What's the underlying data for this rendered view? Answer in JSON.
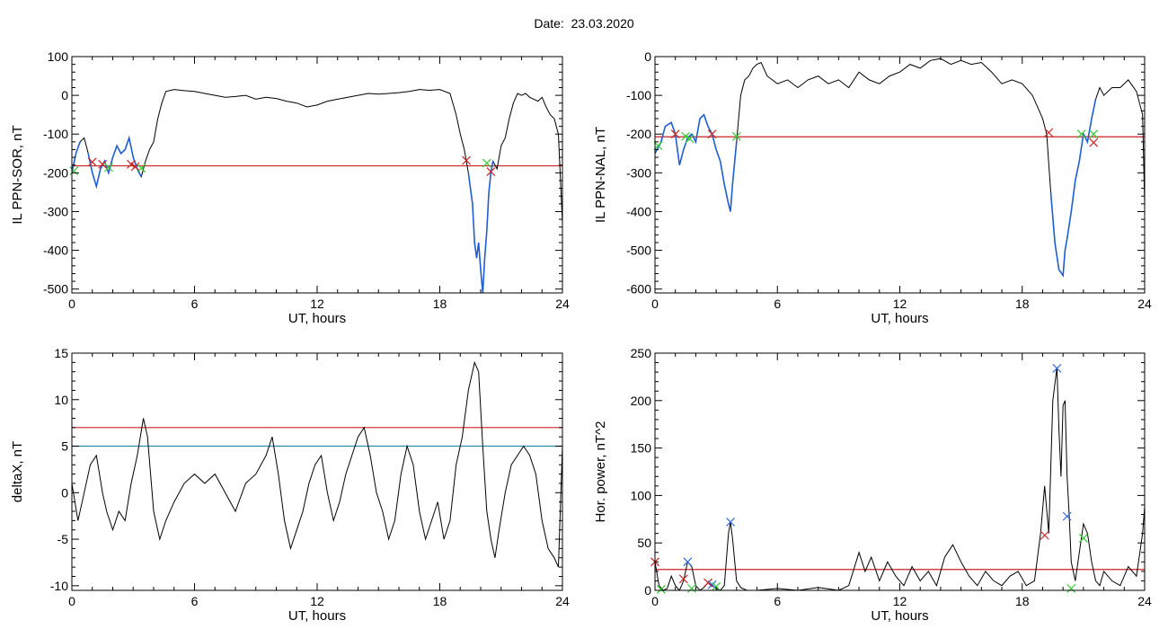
{
  "date_title": "Date:  23.03.2020",
  "colors": {
    "axis": "#000000",
    "signal": "#000000",
    "highlight": "#1f5fd6",
    "threshold_red": "#cc2222",
    "threshold_teal": "#2a8fa8",
    "marker_red": "#cc2222",
    "marker_green": "#33cc33",
    "marker_blue": "#3366dd"
  },
  "chart_data": [
    {
      "id": "panel-il-ppn-sor",
      "type": "line",
      "xlabel": "UT, hours",
      "ylabel": "IL PPN-SOR, nT",
      "xlim": [
        0,
        24
      ],
      "ylim": [
        -510,
        100
      ],
      "xticks": [
        0,
        6,
        12,
        18,
        24
      ],
      "yticks": [
        100,
        0,
        -100,
        -200,
        -300,
        -400,
        -500
      ],
      "xtick_labels": [
        "0",
        "6",
        "12",
        "18",
        "24"
      ],
      "ytick_labels": [
        "100",
        "0",
        "-100",
        "-200",
        "-300",
        "-400",
        "-500"
      ],
      "threshold_red": -182,
      "series": [
        {
          "x": [
            0,
            0.2,
            0.4,
            0.6,
            0.8,
            1.0,
            1.2,
            1.4,
            1.6,
            1.8,
            2.0,
            2.2,
            2.4,
            2.6,
            2.8,
            3.0,
            3.2,
            3.4,
            3.6,
            3.8,
            4.0,
            4.2,
            4.4,
            4.6,
            5.0,
            5.5,
            6.0,
            6.5,
            7.0,
            7.5,
            8.0,
            8.5,
            9.0,
            9.5,
            10.0,
            10.5,
            11.0,
            11.5,
            12.0,
            12.5,
            13.0,
            13.5,
            14.0,
            14.5,
            15.0,
            15.5,
            16.0,
            16.5,
            17.0,
            17.5,
            18.0,
            18.5,
            18.8,
            19.0,
            19.2,
            19.4,
            19.6,
            19.7,
            19.8,
            19.9,
            20.0,
            20.1,
            20.2,
            20.3,
            20.4,
            20.5,
            20.6,
            20.8,
            21.0,
            21.2,
            21.4,
            21.6,
            21.8,
            22.0,
            22.2,
            22.4,
            22.6,
            22.8,
            23.0,
            23.2,
            23.4,
            23.6,
            23.8,
            24.0
          ],
          "y": [
            -200,
            -150,
            -120,
            -110,
            -150,
            -200,
            -235,
            -190,
            -170,
            -200,
            -160,
            -130,
            -150,
            -140,
            -110,
            -160,
            -190,
            -210,
            -170,
            -140,
            -120,
            -60,
            -20,
            10,
            15,
            12,
            10,
            5,
            0,
            -5,
            -3,
            0,
            -10,
            -5,
            -8,
            -15,
            -20,
            -30,
            -25,
            -15,
            -10,
            -5,
            0,
            5,
            3,
            5,
            7,
            10,
            15,
            13,
            15,
            5,
            -50,
            -100,
            -140,
            -200,
            -280,
            -380,
            -420,
            -380,
            -450,
            -510,
            -420,
            -350,
            -250,
            -200,
            -170,
            -190,
            -130,
            -110,
            -60,
            -20,
            5,
            0,
            5,
            -5,
            -10,
            -15,
            -5,
            -30,
            -50,
            -60,
            -100,
            -330
          ]
        }
      ],
      "highlight_segments": [
        [
          0.0,
          0.4
        ],
        [
          0.8,
          3.4
        ],
        [
          19.3,
          20.6
        ]
      ],
      "markers": [
        {
          "x": 0.1,
          "y": -195,
          "color": "marker_green"
        },
        {
          "x": 1.0,
          "y": -172,
          "color": "marker_red"
        },
        {
          "x": 1.5,
          "y": -178,
          "color": "marker_red"
        },
        {
          "x": 1.8,
          "y": -186,
          "color": "marker_green"
        },
        {
          "x": 2.9,
          "y": -178,
          "color": "marker_red"
        },
        {
          "x": 3.1,
          "y": -184,
          "color": "marker_red"
        },
        {
          "x": 3.4,
          "y": -188,
          "color": "marker_green"
        },
        {
          "x": 19.3,
          "y": -168,
          "color": "marker_red"
        },
        {
          "x": 20.3,
          "y": -175,
          "color": "marker_green"
        },
        {
          "x": 20.5,
          "y": -197,
          "color": "marker_red"
        }
      ]
    },
    {
      "id": "panel-il-ppn-nal",
      "type": "line",
      "xlabel": "UT, hours",
      "ylabel": "IL PPN-NAL, nT",
      "xlim": [
        0,
        24
      ],
      "ylim": [
        -610,
        0
      ],
      "xticks": [
        0,
        6,
        12,
        18,
        24
      ],
      "yticks": [
        0,
        -100,
        -200,
        -300,
        -400,
        -500,
        -600
      ],
      "xtick_labels": [
        "0",
        "6",
        "12",
        "18",
        "24"
      ],
      "ytick_labels": [
        "0",
        "-100",
        "-200",
        "-300",
        "-400",
        "-500",
        "-600"
      ],
      "threshold_red": -207,
      "series": [
        {
          "x": [
            0,
            0.3,
            0.5,
            0.8,
            1.0,
            1.2,
            1.4,
            1.6,
            1.8,
            2.0,
            2.2,
            2.4,
            2.6,
            2.8,
            3.0,
            3.2,
            3.4,
            3.6,
            3.7,
            3.8,
            4.0,
            4.2,
            4.4,
            4.6,
            4.8,
            5.0,
            5.2,
            5.5,
            6.0,
            6.5,
            7.0,
            7.5,
            8.0,
            8.5,
            9.0,
            9.5,
            10.0,
            10.5,
            11.0,
            11.5,
            12.0,
            12.5,
            13.0,
            13.5,
            14.0,
            14.5,
            15.0,
            15.5,
            16.0,
            16.5,
            17.0,
            17.5,
            18.0,
            18.5,
            19.0,
            19.2,
            19.4,
            19.6,
            19.8,
            20.0,
            20.1,
            20.2,
            20.4,
            20.6,
            20.8,
            21.0,
            21.2,
            21.4,
            21.6,
            21.8,
            22.0,
            22.4,
            22.8,
            23.2,
            23.6,
            23.9,
            24.0
          ],
          "y": [
            -250,
            -220,
            -180,
            -170,
            -200,
            -280,
            -240,
            -210,
            -200,
            -220,
            -160,
            -150,
            -180,
            -200,
            -240,
            -270,
            -330,
            -380,
            -400,
            -330,
            -220,
            -100,
            -60,
            -50,
            -30,
            -20,
            -15,
            -50,
            -70,
            -60,
            -80,
            -60,
            -50,
            -70,
            -60,
            -80,
            -40,
            -60,
            -70,
            -50,
            -40,
            -20,
            -30,
            -10,
            -5,
            -20,
            -10,
            -20,
            -15,
            -40,
            -70,
            -60,
            -70,
            -100,
            -160,
            -200,
            -350,
            -480,
            -550,
            -565,
            -500,
            -470,
            -400,
            -320,
            -270,
            -200,
            -220,
            -160,
            -110,
            -80,
            -100,
            -80,
            -80,
            -60,
            -90,
            -150,
            -380
          ]
        }
      ],
      "highlight_segments": [
        [
          0.0,
          4.1
        ],
        [
          19.4,
          21.6
        ]
      ],
      "markers": [
        {
          "x": 0.15,
          "y": -230,
          "color": "marker_green"
        },
        {
          "x": 1.0,
          "y": -200,
          "color": "marker_red"
        },
        {
          "x": 1.5,
          "y": -206,
          "color": "marker_green"
        },
        {
          "x": 1.7,
          "y": -212,
          "color": "marker_green"
        },
        {
          "x": 2.8,
          "y": -200,
          "color": "marker_red"
        },
        {
          "x": 4.0,
          "y": -206,
          "color": "marker_green"
        },
        {
          "x": 19.3,
          "y": -196,
          "color": "marker_red"
        },
        {
          "x": 20.9,
          "y": -200,
          "color": "marker_green"
        },
        {
          "x": 21.5,
          "y": -200,
          "color": "marker_green"
        },
        {
          "x": 21.5,
          "y": -222,
          "color": "marker_red"
        }
      ]
    },
    {
      "id": "panel-deltax",
      "type": "line",
      "xlabel": "UT, hours",
      "ylabel": "deltaX, nT",
      "xlim": [
        0,
        24
      ],
      "ylim": [
        -10.5,
        15
      ],
      "xticks": [
        0,
        6,
        12,
        18,
        24
      ],
      "yticks": [
        15,
        10,
        5,
        0,
        -5,
        -10
      ],
      "xtick_labels": [
        "0",
        "6",
        "12",
        "18",
        "24"
      ],
      "ytick_labels": [
        "15",
        "10",
        "5",
        "0",
        "-5",
        "-10"
      ],
      "threshold_red": 7,
      "threshold_teal": 5,
      "series": [
        {
          "x": [
            0,
            0.3,
            0.6,
            0.9,
            1.2,
            1.5,
            1.7,
            2.0,
            2.3,
            2.6,
            2.9,
            3.2,
            3.5,
            3.7,
            4.0,
            4.3,
            4.6,
            5.0,
            5.5,
            6.0,
            6.5,
            7.0,
            7.5,
            8.0,
            8.5,
            9.0,
            9.5,
            9.8,
            10.1,
            10.4,
            10.7,
            11.0,
            11.3,
            11.6,
            11.9,
            12.2,
            12.5,
            12.8,
            13.1,
            13.4,
            13.7,
            14.0,
            14.3,
            14.6,
            14.9,
            15.2,
            15.5,
            15.8,
            16.1,
            16.4,
            16.7,
            17.0,
            17.3,
            17.6,
            17.9,
            18.2,
            18.5,
            18.8,
            19.1,
            19.4,
            19.7,
            19.9,
            20.1,
            20.3,
            20.5,
            20.7,
            20.9,
            21.2,
            21.5,
            21.8,
            22.1,
            22.4,
            22.7,
            23.0,
            23.3,
            23.6,
            23.8,
            24.0
          ],
          "y": [
            1,
            -3,
            0,
            3,
            4,
            0,
            -2,
            -4,
            -2,
            -3,
            1,
            4,
            8,
            6,
            -2,
            -5,
            -3,
            -1,
            1,
            2,
            1,
            2,
            0,
            -2,
            1,
            2,
            4,
            6,
            2,
            -3,
            -6,
            -4,
            -2,
            1,
            3,
            4,
            0,
            -3,
            -1,
            2,
            4,
            6,
            7,
            4,
            0,
            -2,
            -5,
            -3,
            2,
            5,
            3,
            -2,
            -5,
            -3,
            -1,
            -5,
            -3,
            3,
            6,
            11,
            14,
            13,
            5,
            -2,
            -5,
            -7,
            -4,
            0,
            3,
            4,
            5,
            4,
            2,
            -3,
            -6,
            -7,
            -8,
            5
          ]
        }
      ],
      "markers": []
    },
    {
      "id": "panel-hor-power",
      "type": "line",
      "xlabel": "UT, hours",
      "ylabel": "Hor. power, nT^2",
      "xlim": [
        0,
        24
      ],
      "ylim": [
        0,
        250
      ],
      "xticks": [
        0,
        6,
        12,
        18,
        24
      ],
      "yticks": [
        250,
        200,
        150,
        100,
        50,
        0
      ],
      "xtick_labels": [
        "0",
        "6",
        "12",
        "18",
        "24"
      ],
      "ytick_labels": [
        "250",
        "200",
        "150",
        "100",
        "50",
        "0"
      ],
      "threshold_red": 22,
      "series": [
        {
          "x": [
            0,
            0.2,
            0.4,
            0.6,
            0.8,
            1.0,
            1.2,
            1.4,
            1.6,
            1.8,
            2.0,
            2.2,
            2.4,
            2.6,
            2.8,
            3.0,
            3.2,
            3.4,
            3.6,
            3.7,
            3.8,
            4.0,
            4.2,
            4.5,
            5.0,
            6.0,
            7.0,
            8.0,
            9.0,
            9.5,
            10.0,
            10.3,
            10.6,
            11.0,
            11.4,
            11.8,
            12.2,
            12.6,
            13.0,
            13.4,
            13.8,
            14.2,
            14.6,
            15.0,
            15.4,
            15.8,
            16.2,
            16.6,
            17.0,
            17.4,
            17.8,
            18.2,
            18.6,
            18.9,
            19.1,
            19.3,
            19.5,
            19.7,
            19.8,
            19.9,
            20.0,
            20.1,
            20.2,
            20.3,
            20.4,
            20.6,
            20.8,
            21.0,
            21.2,
            21.4,
            21.6,
            21.8,
            22.0,
            22.4,
            22.8,
            23.2,
            23.6,
            23.9,
            24.0
          ],
          "y": [
            30,
            5,
            0,
            2,
            15,
            5,
            0,
            10,
            30,
            25,
            5,
            0,
            3,
            8,
            5,
            2,
            0,
            5,
            60,
            72,
            55,
            10,
            3,
            0,
            0,
            2,
            0,
            3,
            0,
            5,
            40,
            20,
            35,
            10,
            30,
            15,
            5,
            25,
            10,
            20,
            5,
            35,
            48,
            30,
            15,
            5,
            20,
            10,
            5,
            15,
            20,
            5,
            10,
            60,
            110,
            60,
            200,
            235,
            170,
            120,
            195,
            200,
            120,
            80,
            30,
            10,
            40,
            70,
            60,
            30,
            10,
            5,
            20,
            10,
            5,
            25,
            15,
            60,
            88
          ]
        }
      ],
      "markers": [
        {
          "x": 0.0,
          "y": 30,
          "color": "marker_red"
        },
        {
          "x": 0.3,
          "y": 1,
          "color": "marker_green"
        },
        {
          "x": 1.4,
          "y": 12,
          "color": "marker_red"
        },
        {
          "x": 1.6,
          "y": 30,
          "color": "marker_blue"
        },
        {
          "x": 1.8,
          "y": 2,
          "color": "marker_green"
        },
        {
          "x": 2.6,
          "y": 8,
          "color": "marker_red"
        },
        {
          "x": 2.8,
          "y": 6,
          "color": "marker_blue"
        },
        {
          "x": 3.0,
          "y": 4,
          "color": "marker_green"
        },
        {
          "x": 3.7,
          "y": 72,
          "color": "marker_blue"
        },
        {
          "x": 19.1,
          "y": 58,
          "color": "marker_red"
        },
        {
          "x": 19.7,
          "y": 234,
          "color": "marker_blue"
        },
        {
          "x": 20.2,
          "y": 78,
          "color": "marker_blue"
        },
        {
          "x": 20.4,
          "y": 2,
          "color": "marker_green"
        },
        {
          "x": 21.0,
          "y": 55,
          "color": "marker_green"
        }
      ]
    }
  ]
}
